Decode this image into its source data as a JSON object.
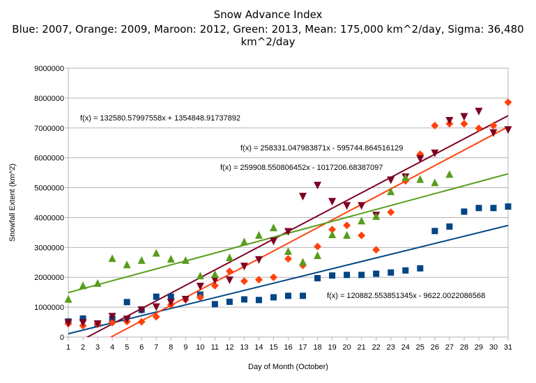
{
  "chart_data": {
    "type": "scatter",
    "title": "Snow Advance Index",
    "subtitle": "Blue: 2007, Orange: 2009, Maroon: 2012, Green: 2013, Mean: 175,000 km^2/day, Sigma: 36,480 km^2/day",
    "xlabel": "Day of Month (October)",
    "ylabel": "Snowfall Extent (km^2)",
    "xlim": [
      1,
      31
    ],
    "ylim": [
      0,
      9000000
    ],
    "x_ticks": [
      "1",
      "2",
      "3",
      "4",
      "5",
      "6",
      "7",
      "8",
      "9",
      "10",
      "11",
      "12",
      "13",
      "14",
      "15",
      "16",
      "17",
      "18",
      "19",
      "20",
      "21",
      "22",
      "23",
      "24",
      "25",
      "26",
      "27",
      "28",
      "29",
      "30",
      "31"
    ],
    "y_ticks": [
      "0",
      "1000000",
      "2000000",
      "3000000",
      "4000000",
      "5000000",
      "6000000",
      "7000000",
      "8000000",
      "9000000"
    ],
    "grid": true,
    "series": [
      {
        "color": "#004586",
        "marker": "square",
        "x": [
          1,
          2,
          3,
          4,
          5,
          6,
          7,
          8,
          10,
          11,
          12,
          13,
          14,
          15,
          16,
          17,
          18,
          19,
          20,
          21,
          22,
          23,
          24,
          25,
          26,
          27,
          28,
          29,
          30,
          31
        ],
        "y": [
          520000,
          620000,
          450000,
          600000,
          1170000,
          910000,
          1350000,
          1350000,
          1420000,
          1100000,
          1180000,
          1260000,
          1240000,
          1330000,
          1380000,
          1380000,
          1970000,
          2060000,
          2080000,
          2080000,
          2120000,
          2160000,
          2230000,
          2300000,
          3550000,
          3700000,
          4200000,
          4320000,
          4320000,
          4370000
        ],
        "trend": {
          "slope": 120882.553851345,
          "intercept": -9622.0022086568,
          "equation": "f(x) = 120882.553851345x - 9622.0022086568"
        }
      },
      {
        "color": "#ff420e",
        "marker": "diamond",
        "x": [
          1,
          2,
          3,
          4,
          5,
          6,
          7,
          8,
          9,
          10,
          11,
          12,
          13,
          14,
          15,
          16,
          17,
          18,
          19,
          20,
          21,
          22,
          23,
          24,
          25,
          26,
          27,
          28,
          29,
          30,
          31
        ],
        "y": [
          450000,
          380000,
          430000,
          480000,
          520000,
          510000,
          680000,
          1080000,
          1250000,
          1330000,
          1720000,
          2200000,
          1870000,
          1920000,
          2000000,
          2620000,
          2400000,
          3030000,
          3600000,
          3740000,
          3400000,
          2920000,
          4180000,
          5230000,
          6120000,
          7080000,
          7140000,
          7140000,
          6990000,
          7080000,
          7860000
        ],
        "trend": {
          "slope": 259908.550806452,
          "intercept": -1017206.68387097,
          "equation": "f(x) = 259908.550806452x - 1017206.68387097"
        }
      },
      {
        "color": "#7e0021",
        "marker": "triangle-down",
        "x": [
          1,
          2,
          3,
          4,
          5,
          6,
          7,
          8,
          9,
          10,
          11,
          12,
          13,
          14,
          15,
          16,
          17,
          18,
          19,
          20,
          21,
          22,
          23,
          24,
          25,
          26,
          27,
          28,
          29,
          30,
          31
        ],
        "y": [
          470000,
          470000,
          430000,
          680000,
          590000,
          900000,
          1000000,
          1150000,
          1250000,
          1690000,
          1900000,
          1900000,
          2360000,
          2580000,
          3200000,
          3520000,
          4700000,
          5070000,
          4530000,
          4390000,
          4390000,
          4070000,
          5250000,
          5350000,
          5960000,
          6150000,
          7240000,
          7370000,
          7550000,
          6830000,
          6930000
        ],
        "trend": {
          "slope": 258331.047983871,
          "intercept": -595744.864516129,
          "equation": "f(x) = 258331.047983871x - 595744.864516129"
        }
      },
      {
        "color": "#579d1c",
        "marker": "triangle-up",
        "x": [
          1,
          2,
          3,
          4,
          5,
          6,
          7,
          8,
          9,
          10,
          11,
          12,
          13,
          14,
          15,
          16,
          17,
          18,
          19,
          20,
          21,
          22,
          23,
          24,
          25,
          26,
          27
        ],
        "y": [
          1280000,
          1730000,
          1810000,
          2640000,
          2430000,
          2580000,
          2820000,
          2620000,
          2580000,
          2060000,
          2110000,
          2670000,
          3200000,
          3420000,
          3670000,
          2880000,
          2520000,
          2740000,
          3440000,
          3420000,
          3900000,
          4050000,
          4880000,
          5350000,
          5290000,
          5180000,
          5460000
        ],
        "trend": {
          "slope": 132580.57997558,
          "intercept": 1354848.91737892,
          "equation": "f(x) = 132580.57997558x + 1354848.91737892"
        }
      }
    ]
  }
}
